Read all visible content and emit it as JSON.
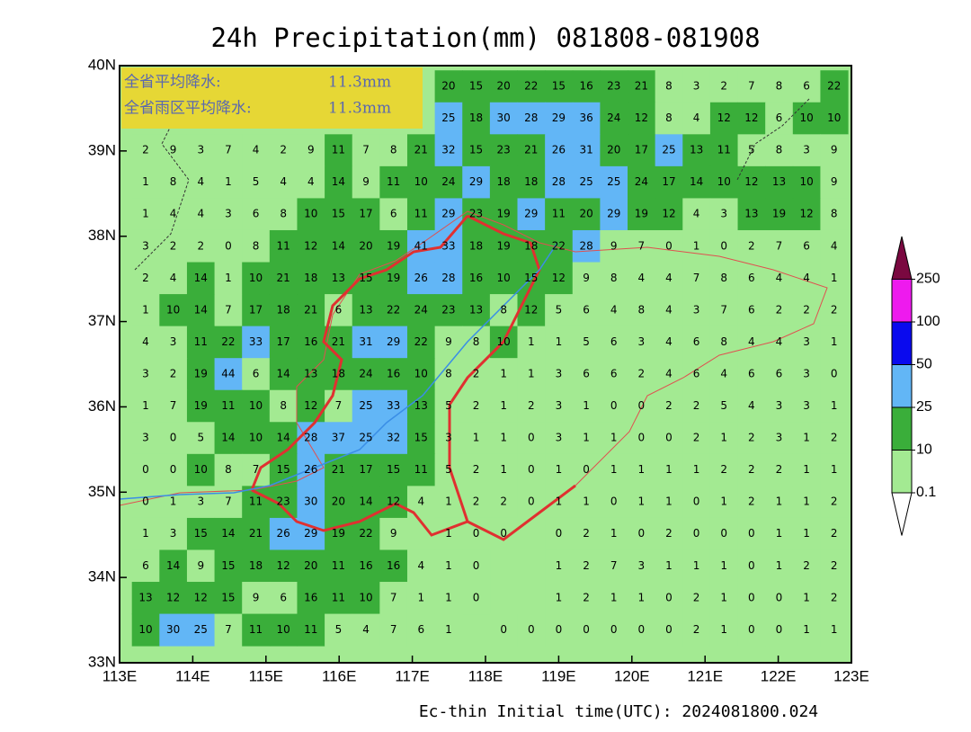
{
  "title": "24h Precipitation(mm) 081808-081908",
  "footer": "Ec-thin  Initial time(UTC): 2024081800.024",
  "summary": [
    {
      "label": "全省平均降水:",
      "value": "11.3mm"
    },
    {
      "label": "全省雨区平均降水:",
      "value": "11.3mm"
    }
  ],
  "lon_ticks": [
    {
      "value": 113,
      "label": "113E"
    },
    {
      "value": 114,
      "label": "114E"
    },
    {
      "value": 115,
      "label": "115E"
    },
    {
      "value": 116,
      "label": "116E"
    },
    {
      "value": 117,
      "label": "117E"
    },
    {
      "value": 118,
      "label": "118E"
    },
    {
      "value": 119,
      "label": "119E"
    },
    {
      "value": 120,
      "label": "120E"
    },
    {
      "value": 121,
      "label": "121E"
    },
    {
      "value": 122,
      "label": "122E"
    },
    {
      "value": 123,
      "label": "123E"
    }
  ],
  "lat_ticks": [
    {
      "value": 33,
      "label": "33N"
    },
    {
      "value": 34,
      "label": "34N"
    },
    {
      "value": 35,
      "label": "35N"
    },
    {
      "value": 36,
      "label": "36N"
    },
    {
      "value": 37,
      "label": "37N"
    },
    {
      "value": 38,
      "label": "38N"
    },
    {
      "value": 39,
      "label": "39N"
    },
    {
      "value": 40,
      "label": "40N"
    }
  ],
  "legend": {
    "levels": [
      0.1,
      10,
      25,
      50,
      100,
      250
    ],
    "colors": [
      "#ffffff",
      "#a3ea92",
      "#3aae3a",
      "#62b6f6",
      "#0a0aee",
      "#ee1aee",
      "#7a0840"
    ]
  },
  "grid": {
    "rows": [
      [
        null,
        null,
        null,
        null,
        null,
        null,
        null,
        null,
        null,
        null,
        null,
        20,
        15,
        20,
        22,
        15,
        16,
        23,
        21,
        8,
        3,
        2,
        7,
        8,
        6,
        22
      ],
      [
        null,
        null,
        null,
        null,
        null,
        null,
        null,
        null,
        null,
        null,
        null,
        25,
        18,
        30,
        28,
        29,
        36,
        24,
        12,
        8,
        4,
        12,
        12,
        6,
        10,
        10
      ],
      [
        2,
        9,
        3,
        7,
        4,
        2,
        9,
        11,
        7,
        8,
        21,
        32,
        15,
        23,
        21,
        26,
        31,
        20,
        17,
        25,
        13,
        11,
        5,
        8,
        3,
        9
      ],
      [
        1,
        8,
        4,
        1,
        5,
        4,
        4,
        14,
        9,
        11,
        10,
        24,
        29,
        18,
        18,
        28,
        25,
        25,
        24,
        17,
        14,
        10,
        12,
        13,
        10,
        9
      ],
      [
        1,
        4,
        4,
        3,
        6,
        8,
        10,
        15,
        17,
        6,
        11,
        29,
        23,
        19,
        29,
        11,
        20,
        29,
        19,
        12,
        4,
        3,
        13,
        19,
        12,
        8
      ],
      [
        3,
        2,
        2,
        0,
        8,
        11,
        12,
        14,
        20,
        19,
        41,
        33,
        18,
        19,
        18,
        22,
        28,
        9,
        7,
        0,
        1,
        0,
        2,
        7,
        6,
        4
      ],
      [
        2,
        4,
        14,
        1,
        10,
        21,
        18,
        13,
        15,
        19,
        26,
        28,
        16,
        10,
        15,
        12,
        9,
        8,
        4,
        4,
        7,
        8,
        6,
        4,
        4,
        1
      ],
      [
        1,
        10,
        14,
        7,
        17,
        18,
        21,
        6,
        13,
        22,
        24,
        23,
        13,
        8,
        12,
        5,
        6,
        4,
        8,
        4,
        3,
        7,
        6,
        2,
        2,
        2
      ],
      [
        4,
        3,
        11,
        22,
        33,
        17,
        16,
        21,
        31,
        29,
        22,
        9,
        8,
        10,
        1,
        1,
        5,
        6,
        3,
        4,
        6,
        8,
        4,
        4,
        3,
        1
      ],
      [
        3,
        2,
        19,
        44,
        6,
        14,
        13,
        18,
        24,
        16,
        10,
        8,
        2,
        1,
        1,
        3,
        6,
        6,
        2,
        4,
        6,
        4,
        6,
        6,
        3,
        0
      ],
      [
        1,
        7,
        19,
        11,
        10,
        8,
        12,
        7,
        25,
        33,
        13,
        5,
        2,
        1,
        2,
        3,
        1,
        0,
        0,
        2,
        2,
        5,
        4,
        3,
        3,
        1
      ],
      [
        3,
        0,
        5,
        14,
        10,
        14,
        28,
        37,
        25,
        32,
        15,
        3,
        1,
        1,
        0,
        3,
        1,
        1,
        0,
        0,
        2,
        1,
        2,
        3,
        1,
        2
      ],
      [
        0,
        0,
        10,
        8,
        7,
        15,
        26,
        21,
        17,
        15,
        11,
        5,
        2,
        1,
        0,
        1,
        0,
        1,
        1,
        1,
        1,
        2,
        2,
        2,
        1,
        1
      ],
      [
        0,
        1,
        3,
        7,
        11,
        23,
        30,
        20,
        14,
        12,
        4,
        1,
        2,
        2,
        0,
        1,
        1,
        0,
        1,
        1,
        0,
        1,
        2,
        1,
        1,
        2
      ],
      [
        1,
        3,
        15,
        14,
        21,
        26,
        29,
        19,
        22,
        9,
        null,
        1,
        0,
        0,
        null,
        0,
        2,
        1,
        0,
        2,
        0,
        0,
        0,
        1,
        1,
        2
      ],
      [
        6,
        14,
        9,
        15,
        18,
        12,
        20,
        11,
        16,
        16,
        4,
        1,
        0,
        null,
        null,
        1,
        2,
        7,
        3,
        1,
        1,
        1,
        0,
        1,
        2,
        2
      ],
      [
        13,
        12,
        12,
        15,
        9,
        6,
        16,
        11,
        10,
        7,
        1,
        1,
        0,
        null,
        null,
        1,
        2,
        1,
        1,
        0,
        2,
        1,
        0,
        0,
        1,
        2
      ],
      [
        10,
        30,
        25,
        7,
        11,
        10,
        11,
        5,
        4,
        7,
        6,
        1,
        null,
        0,
        0,
        0,
        0,
        0,
        0,
        0,
        2,
        1,
        0,
        0,
        1,
        1
      ]
    ]
  }
}
